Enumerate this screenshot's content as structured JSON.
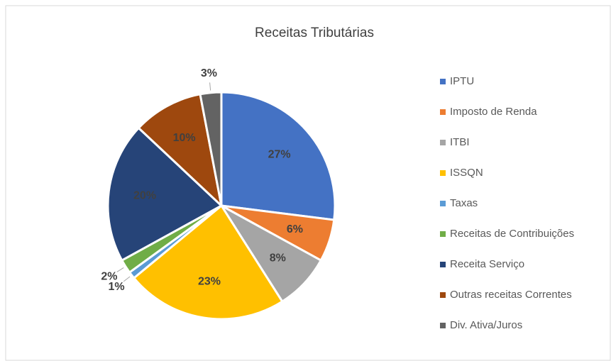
{
  "chart_data": {
    "type": "pie",
    "title": "Receitas Tributárias",
    "categories": [
      "IPTU",
      "Imposto de Renda",
      "ITBI",
      "ISSQN",
      "Taxas",
      "Receitas de Contribuições",
      "Receita Serviço",
      "Outras receitas Correntes",
      "Div. Ativa/Juros"
    ],
    "values": [
      27,
      6,
      8,
      23,
      1,
      2,
      20,
      10,
      3
    ],
    "value_labels": [
      "27%",
      "6%",
      "8%",
      "23%",
      "1%",
      "2%",
      "20%",
      "10%",
      "3%"
    ],
    "colors": [
      "#4472c4",
      "#ed7d31",
      "#a5a5a5",
      "#ffc000",
      "#5b9bd5",
      "#70ad47",
      "#264478",
      "#9e480e",
      "#636363"
    ],
    "legend": "right"
  }
}
